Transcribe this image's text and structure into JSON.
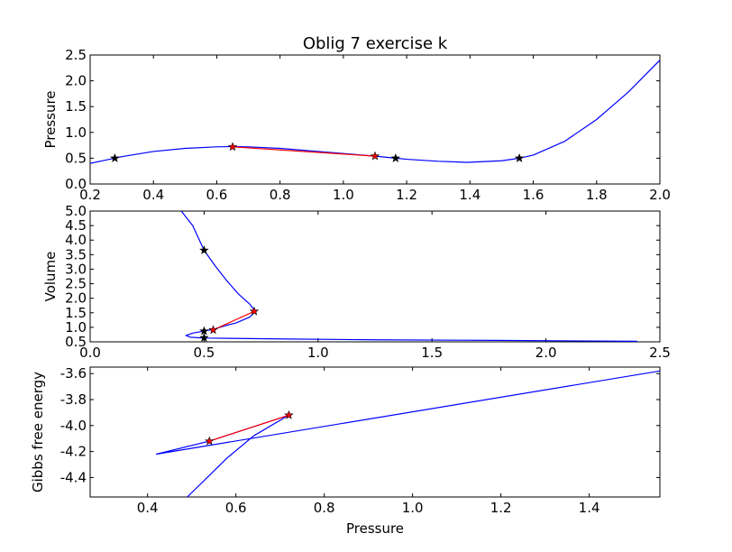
{
  "figure_title": "Oblig 7 exercise k",
  "chart_data": [
    {
      "type": "line",
      "title": "Oblig 7 exercise k",
      "xlabel": "",
      "ylabel": "Pressure",
      "xlim": [
        0.2,
        2.0
      ],
      "ylim": [
        0.0,
        2.5
      ],
      "xticks": [
        "0.2",
        "0.4",
        "0.6",
        "0.8",
        "1.0",
        "1.2",
        "1.4",
        "1.6",
        "1.8",
        "2.0"
      ],
      "yticks": [
        "0.0",
        "0.5",
        "1.0",
        "1.5",
        "2.0",
        "2.5"
      ],
      "series": [
        {
          "color": "#0000ff",
          "marker": "none",
          "x": [
            0.2,
            0.3,
            0.4,
            0.5,
            0.6,
            0.65,
            0.7,
            0.8,
            0.9,
            1.0,
            1.1,
            1.165,
            1.2,
            1.3,
            1.39,
            1.5,
            1.556,
            1.6,
            1.7,
            1.8,
            1.9,
            2.0
          ],
          "y": [
            0.4,
            0.53,
            0.63,
            0.69,
            0.72,
            0.725,
            0.72,
            0.69,
            0.64,
            0.59,
            0.54,
            0.5,
            0.48,
            0.44,
            0.42,
            0.45,
            0.5,
            0.56,
            0.83,
            1.25,
            1.78,
            2.4
          ]
        },
        {
          "color": "#ff0000",
          "marker": "star",
          "x": [
            0.65,
            1.1
          ],
          "y": [
            0.72,
            0.54
          ]
        },
        {
          "color": "#000000",
          "marker": "star",
          "line": "none",
          "x": [
            0.278,
            1.165,
            1.556
          ],
          "y": [
            0.5,
            0.5,
            0.5
          ]
        }
      ]
    },
    {
      "type": "line",
      "xlabel": "",
      "ylabel": "Volume",
      "xlim": [
        0.0,
        2.5
      ],
      "ylim": [
        0.5,
        5.0
      ],
      "xticks": [
        "0.0",
        "0.5",
        "1.0",
        "1.5",
        "2.0",
        "2.5"
      ],
      "yticks": [
        "0.5",
        "1.0",
        "1.5",
        "2.0",
        "2.5",
        "3.0",
        "3.5",
        "4.0",
        "4.5",
        "5.0"
      ],
      "series": [
        {
          "color": "#0000ff",
          "marker": "none",
          "x": [
            0.4,
            0.45,
            0.5,
            0.55,
            0.6,
            0.65,
            0.7,
            0.725,
            0.7,
            0.64,
            0.59,
            0.54,
            0.5,
            0.45,
            0.42,
            0.44,
            0.5,
            0.83,
            1.25,
            1.78,
            2.4
          ],
          "y": [
            5.0,
            4.5,
            3.65,
            3.1,
            2.6,
            2.15,
            1.8,
            1.55,
            1.35,
            1.15,
            1.05,
            0.93,
            0.87,
            0.8,
            0.72,
            0.66,
            0.63,
            0.6,
            0.57,
            0.55,
            0.52
          ]
        },
        {
          "color": "#ff0000",
          "marker": "star",
          "x": [
            0.72,
            0.54
          ],
          "y": [
            1.55,
            0.91
          ]
        },
        {
          "color": "#000000",
          "marker": "star",
          "line": "none",
          "x": [
            0.5,
            0.5,
            0.5
          ],
          "y": [
            3.65,
            0.87,
            0.64
          ]
        }
      ]
    },
    {
      "type": "line",
      "xlabel": "Pressure",
      "ylabel": "Gibbs free energy",
      "xlim": [
        0.27,
        1.56
      ],
      "ylim": [
        -4.55,
        -3.55
      ],
      "xticks": [
        "0.4",
        "0.6",
        "0.8",
        "1.0",
        "1.2",
        "1.4"
      ],
      "yticks": [
        "-3.6",
        "-3.8",
        "-4.0",
        "-4.2",
        "-4.4"
      ],
      "series": [
        {
          "color": "#0000ff",
          "marker": "none",
          "x": [
            1.56,
            0.42,
            0.54,
            0.72,
            0.64,
            0.58,
            0.49
          ],
          "y": [
            -3.58,
            -4.22,
            -4.12,
            -3.92,
            -4.08,
            -4.25,
            -4.55
          ]
        },
        {
          "color": "#ff0000",
          "marker": "star",
          "x": [
            0.72,
            0.54
          ],
          "y": [
            -3.92,
            -4.12
          ]
        }
      ]
    }
  ]
}
